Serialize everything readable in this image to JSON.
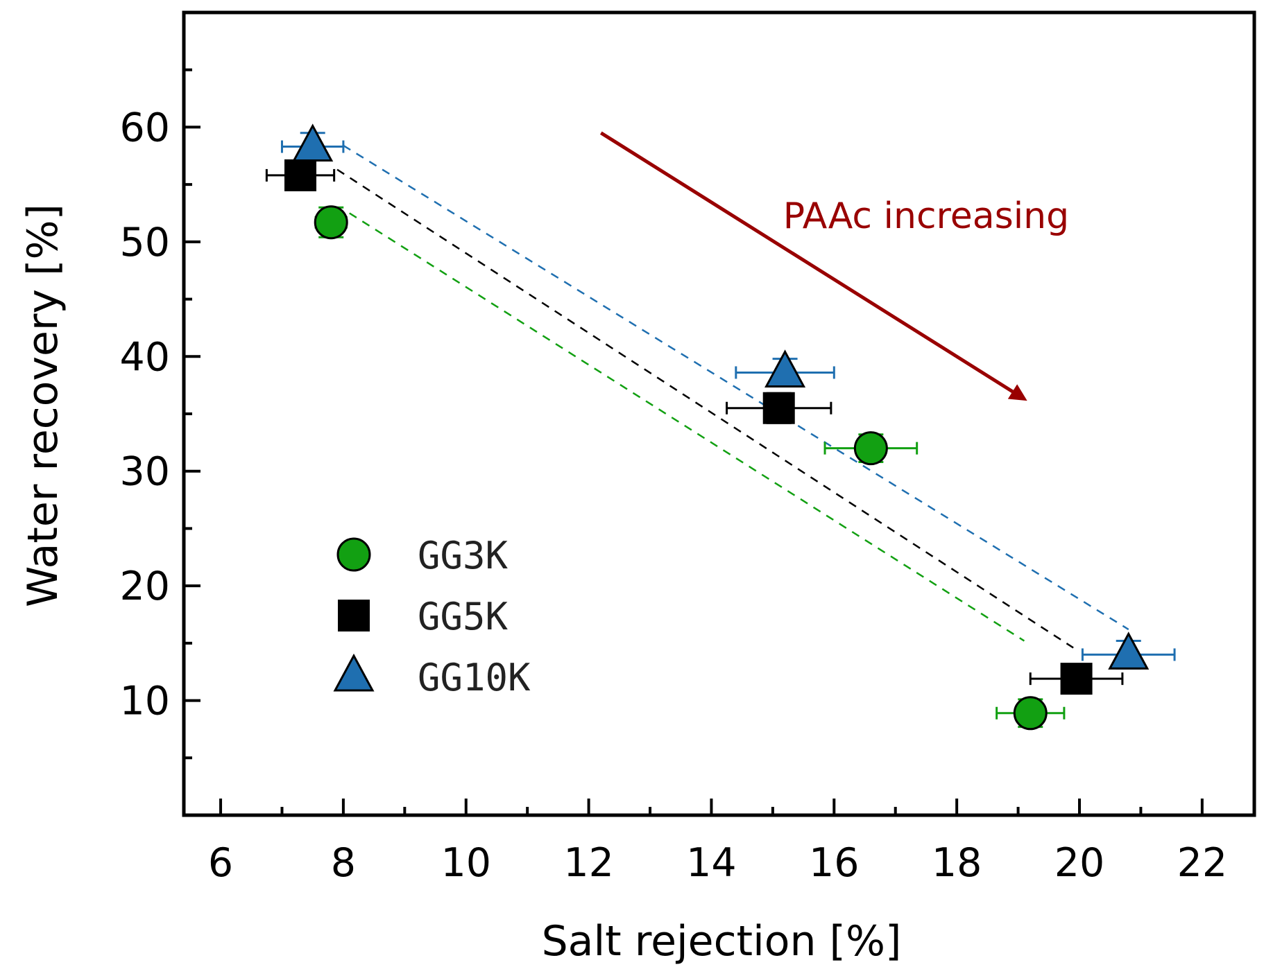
{
  "chart_data": {
    "type": "scatter",
    "title": "",
    "xlabel": "Salt rejection [%]",
    "ylabel": "Water recovery [%]",
    "xlim": [
      5.4,
      22.85
    ],
    "ylim": [
      0,
      70
    ],
    "xticks": [
      6,
      8,
      10,
      12,
      14,
      16,
      18,
      20,
      22
    ],
    "yticks": [
      10,
      20,
      30,
      40,
      50,
      60
    ],
    "x_minor_step": 1,
    "y_minor_step": 5,
    "grid": false,
    "legend_position": "lower-left",
    "series": [
      {
        "name": "GG3K",
        "marker": "circle",
        "color": "#12a012",
        "points": [
          {
            "x": 7.8,
            "y": 51.7,
            "xerr": 0.25,
            "yerr": 1.3
          },
          {
            "x": 16.6,
            "y": 32.0,
            "xerr": 0.75,
            "yerr": 1.2
          },
          {
            "x": 19.2,
            "y": 8.9,
            "xerr": 0.55,
            "yerr": 1.2
          }
        ],
        "trend": [
          [
            8.1,
            52.5
          ],
          [
            19.1,
            15.2
          ]
        ]
      },
      {
        "name": "GG5K",
        "marker": "square",
        "color": "#000000",
        "points": [
          {
            "x": 7.3,
            "y": 55.8,
            "xerr": 0.55,
            "yerr": 1.2
          },
          {
            "x": 15.1,
            "y": 35.5,
            "xerr": 0.85,
            "yerr": 1.3
          },
          {
            "x": 19.95,
            "y": 11.9,
            "xerr": 0.75,
            "yerr": 1.0
          }
        ],
        "trend": [
          [
            7.9,
            56.3
          ],
          [
            19.9,
            14.6
          ]
        ]
      },
      {
        "name": "GG10K",
        "marker": "triangle",
        "color": "#1f6fb0",
        "points": [
          {
            "x": 7.5,
            "y": 58.3,
            "xerr": 0.5,
            "yerr": 1.2
          },
          {
            "x": 15.2,
            "y": 38.6,
            "xerr": 0.8,
            "yerr": 1.2
          },
          {
            "x": 20.8,
            "y": 14.0,
            "xerr": 0.75,
            "yerr": 1.2
          }
        ],
        "trend": [
          [
            8.0,
            58.4
          ],
          [
            20.8,
            16.2
          ]
        ]
      }
    ],
    "annotations": [
      {
        "text": "PAAc increasing",
        "color": "#990000",
        "arrow_from": [
          12.2,
          59.5
        ],
        "arrow_to": [
          19.1,
          36.3
        ],
        "text_at": [
          17.5,
          51.2
        ]
      }
    ]
  }
}
